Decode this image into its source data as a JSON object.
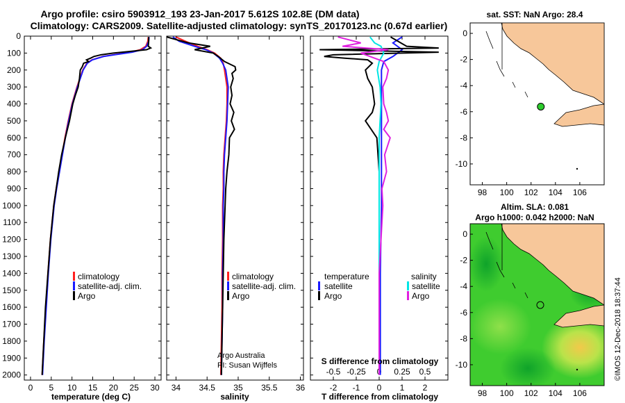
{
  "header": {
    "title_line1": "Argo profile: csiro 5903912_193 23-Jan-2017 5.612S 102.8E (DM data)",
    "title_line2": "Climatology: CARS2009. Satellite-adjusted climatology: synTS_20170123.nc (0.67d earlier)"
  },
  "colors": {
    "climatology": "#ff2020",
    "satellite": "#1a1aff",
    "argo": "#000000",
    "sat_salinity": "#00e5e5",
    "argo_salinity": "#e020e0",
    "land": "#f7c79a"
  },
  "depth_axis": {
    "ticks": [
      "0",
      "100",
      "200",
      "300",
      "400",
      "500",
      "600",
      "700",
      "800",
      "900",
      "1000",
      "1100",
      "1200",
      "1300",
      "1400",
      "1500",
      "1600",
      "1700",
      "1800",
      "1900",
      "2000"
    ],
    "range": [
      0,
      2030
    ]
  },
  "chart_data": [
    {
      "type": "line",
      "name": "temperature",
      "xlabel": "temperature (deg C)",
      "xlim": [
        -1.5,
        31.5
      ],
      "xticks": [
        "0",
        "5",
        "10",
        "15",
        "20",
        "25",
        "30"
      ],
      "ylim": [
        0,
        2030
      ],
      "legend": [
        "climatology",
        "satellite-adj. clim.",
        "Argo"
      ],
      "series": [
        {
          "name": "climatology",
          "color": "#ff2020",
          "depth": [
            5,
            30,
            60,
            80,
            95,
            110,
            120,
            140,
            160,
            200,
            250,
            300,
            400,
            500,
            600,
            700,
            800,
            900,
            1000,
            1200,
            1400,
            1600,
            1800,
            2000
          ],
          "values": [
            28.4,
            28.3,
            27.8,
            26.5,
            24.0,
            20.0,
            17.5,
            14.8,
            13.6,
            12.6,
            11.9,
            11.2,
            10.0,
            9.1,
            8.3,
            7.6,
            6.9,
            6.2,
            5.6,
            4.8,
            4.2,
            3.7,
            3.2,
            2.8
          ]
        },
        {
          "name": "satellite-adj. clim.",
          "color": "#1a1aff",
          "depth": [
            5,
            30,
            60,
            80,
            95,
            110,
            120,
            140,
            160,
            200,
            250,
            300,
            400,
            500,
            600,
            700,
            800,
            900,
            1000,
            1200,
            1400,
            1600,
            1800,
            2000
          ],
          "values": [
            28.6,
            28.5,
            28.0,
            27.0,
            24.5,
            20.2,
            17.6,
            14.9,
            13.7,
            12.7,
            12.0,
            11.3,
            10.1,
            9.2,
            8.4,
            7.7,
            7.0,
            6.3,
            5.7,
            4.9,
            4.3,
            3.8,
            3.3,
            2.9
          ]
        },
        {
          "name": "Argo",
          "color": "#000000",
          "depth": [
            5,
            30,
            60,
            70,
            80,
            90,
            100,
            110,
            120,
            130,
            140,
            150,
            160,
            180,
            200,
            250,
            300,
            350,
            400,
            450,
            500,
            600,
            700,
            800,
            900,
            1000,
            1200,
            1400,
            1600,
            1800,
            2000
          ],
          "values": [
            28.5,
            28.5,
            28.4,
            29.0,
            28.0,
            24.0,
            20.0,
            17.0,
            15.3,
            14.5,
            13.5,
            14.0,
            12.8,
            12.5,
            12.0,
            11.8,
            11.5,
            10.8,
            10.2,
            9.8,
            9.4,
            8.4,
            7.5,
            6.8,
            6.2,
            5.6,
            4.8,
            4.2,
            3.6,
            3.2,
            2.8
          ]
        }
      ]
    },
    {
      "type": "line",
      "name": "salinity",
      "xlabel": "salinity",
      "xlim": [
        33.85,
        36.05
      ],
      "xticks": [
        "34",
        "34.5",
        "35",
        "35.5",
        "36"
      ],
      "ylim": [
        0,
        2030
      ],
      "legend": [
        "climatology",
        "satellite-adj. clim.",
        "Argo"
      ],
      "annotation_line1": "Argo Australia",
      "annotation_line2": "PI: Susan Wijffels",
      "series": [
        {
          "name": "climatology",
          "color": "#ff2020",
          "depth": [
            5,
            30,
            60,
            80,
            100,
            130,
            160,
            200,
            300,
            400,
            500,
            600,
            700,
            800,
            900,
            1000,
            1200,
            1400,
            1600,
            1800,
            2000
          ],
          "values": [
            34.0,
            34.15,
            34.35,
            34.5,
            34.62,
            34.72,
            34.76,
            34.78,
            34.82,
            34.82,
            34.81,
            34.79,
            34.77,
            34.76,
            34.76,
            34.75,
            34.75,
            34.74,
            34.74,
            34.73,
            34.72
          ]
        },
        {
          "name": "satellite-adj. clim.",
          "color": "#1a1aff",
          "depth": [
            5,
            30,
            60,
            80,
            100,
            130,
            160,
            200,
            300,
            400,
            500,
            600,
            700,
            800,
            900,
            1000,
            1200,
            1400,
            1600,
            1800,
            2000
          ],
          "values": [
            33.95,
            34.05,
            34.3,
            34.48,
            34.6,
            34.7,
            34.75,
            34.8,
            34.84,
            34.83,
            34.82,
            34.8,
            34.78,
            34.77,
            34.77,
            34.76,
            34.76,
            34.75,
            34.75,
            34.74,
            34.73
          ]
        },
        {
          "name": "Argo",
          "color": "#000000",
          "depth": [
            5,
            20,
            40,
            60,
            80,
            100,
            120,
            150,
            180,
            200,
            220,
            250,
            300,
            350,
            400,
            450,
            500,
            550,
            600,
            700,
            800,
            900,
            1000,
            1200,
            1400,
            1600,
            1800,
            2000
          ],
          "values": [
            33.85,
            34.0,
            34.2,
            34.55,
            34.3,
            34.6,
            34.68,
            34.78,
            34.95,
            34.96,
            34.9,
            34.92,
            34.88,
            34.9,
            34.87,
            34.93,
            34.89,
            34.94,
            34.86,
            34.85,
            34.82,
            34.8,
            34.79,
            34.77,
            34.76,
            34.75,
            34.74,
            34.73
          ]
        }
      ]
    },
    {
      "type": "line",
      "name": "differences",
      "xlabel": "T difference from climatology",
      "xlabel_top": "S difference from climatology",
      "xlim": [
        -3.0,
        3.0
      ],
      "xticks": [
        "-2",
        "-1",
        "0",
        "1",
        "2"
      ],
      "xticks_top": [
        "-0.5",
        "-0.25",
        "0",
        "0.25",
        "0.5"
      ],
      "ylim": [
        0,
        2030
      ],
      "legend_temperature_title": "temperature",
      "legend_salinity_title": "salinity",
      "legend": [
        "satellite",
        "Argo",
        "satellite",
        "Argo"
      ],
      "series": [
        {
          "name": "T satellite",
          "color": "#1a1aff",
          "depth": [
            5,
            40,
            60,
            80,
            100,
            120,
            150,
            200,
            300,
            400,
            600,
            800,
            1000,
            1400,
            2000
          ],
          "values": [
            1.0,
            0.6,
            0.8,
            1.0,
            0.8,
            0.6,
            0.2,
            0.1,
            0.1,
            0.1,
            0.1,
            0.1,
            0.1,
            0.05,
            0.05
          ]
        },
        {
          "name": "T Argo",
          "color": "#000000",
          "depth": [
            5,
            60,
            70,
            80,
            95,
            110,
            120,
            130,
            140,
            160,
            200,
            250,
            300,
            400,
            450,
            500,
            600,
            800,
            1000,
            1400,
            2000
          ],
          "values": [
            0.5,
            1.2,
            2.6,
            -2.6,
            2.6,
            -2.0,
            -2.4,
            -1.5,
            -0.5,
            -0.3,
            -0.6,
            -0.5,
            -0.3,
            -0.2,
            -0.3,
            -0.6,
            -0.1,
            0.0,
            0.0,
            0.0,
            0.0
          ]
        },
        {
          "name": "S satellite",
          "color": "#00e5e5",
          "depth": [
            5,
            40,
            60,
            100,
            150,
            200,
            300,
            400,
            600,
            800,
            1000,
            1400,
            2000
          ],
          "values": [
            -0.1,
            -0.05,
            0.02,
            0.05,
            0.0,
            -0.02,
            0.01,
            0.02,
            0.0,
            0.0,
            0.0,
            0.0,
            0.0
          ]
        },
        {
          "name": "S Argo",
          "color": "#e020e0",
          "depth": [
            5,
            40,
            60,
            80,
            100,
            150,
            200,
            250,
            300,
            400,
            450,
            500,
            550,
            600,
            700,
            800,
            900,
            1000,
            1200,
            1400,
            1600,
            1800,
            2000
          ],
          "values": [
            -0.45,
            -0.2,
            -0.4,
            0.1,
            -0.2,
            0.05,
            0.1,
            0.08,
            0.04,
            0.05,
            0.08,
            0.1,
            0.05,
            0.12,
            0.06,
            0.08,
            0.03,
            0.04,
            0.02,
            0.0,
            0.0,
            0.0,
            0.0
          ]
        }
      ]
    }
  ],
  "map_top": {
    "title": "sat. SST: NaN Argo: 28.4",
    "lon_ticks": [
      "98",
      "100",
      "102",
      "104",
      "106"
    ],
    "lat_ticks": [
      "0",
      "-2",
      "-4",
      "-6",
      "-8",
      "-10"
    ],
    "float_lon": 102.8,
    "float_lat": -5.612
  },
  "map_bottom": {
    "title_line1": "Altim. SLA: 0.081",
    "title_line2": "Argo h1000: 0.042 h2000: NaN",
    "lon_ticks": [
      "98",
      "100",
      "102",
      "104",
      "106"
    ],
    "lat_ticks": [
      "0",
      "-2",
      "-4",
      "-6",
      "-8",
      "-10"
    ]
  },
  "watermark": "©IMOS 12-Dec-2018 18:37:44"
}
